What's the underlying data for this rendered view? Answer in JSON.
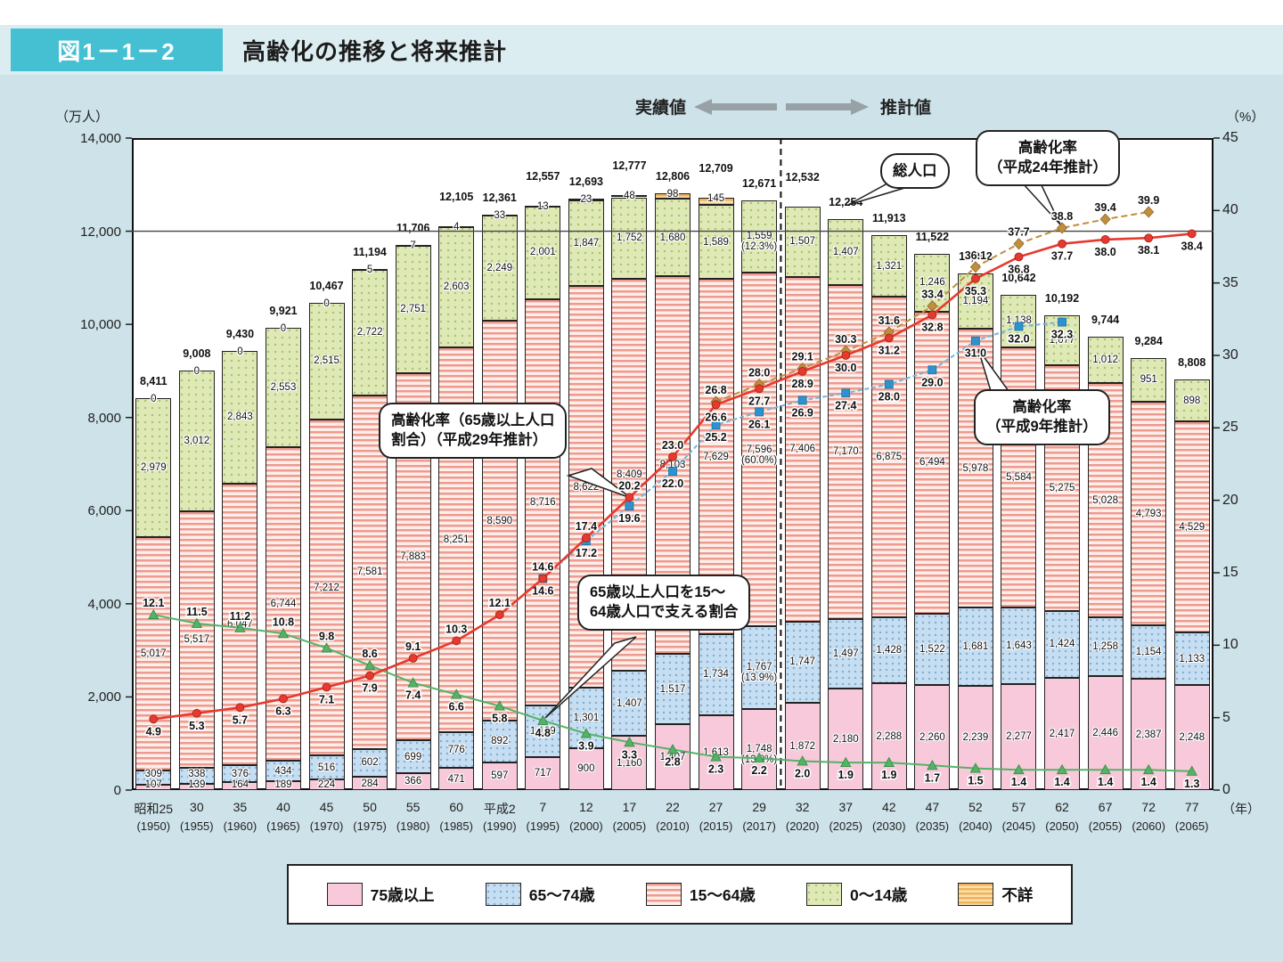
{
  "header": {
    "figure_label": "図1－1－2",
    "title": "高齢化の推移と将来推計"
  },
  "axes": {
    "left_unit": "（万人）",
    "right_unit": "（%）",
    "x_unit": "（年）",
    "left_ticks": [
      "14,000",
      "12,000",
      "10,000",
      "8,000",
      "6,000",
      "4,000",
      "2,000",
      "0"
    ],
    "right_ticks": [
      "45",
      "40",
      "35",
      "30",
      "25",
      "20",
      "15",
      "10",
      "5",
      "0"
    ]
  },
  "annotations": {
    "divider_label_actual": "実績値",
    "divider_label_estimate": "推計値",
    "callout_rate_h29": {
      "line1": "高齢化率（65歳以上人口",
      "line2": "割合）（平成29年推計）"
    },
    "callout_support": {
      "line1": "65歳以上人口を15～",
      "line2": "64歳人口で支える割合"
    },
    "callout_total": {
      "line1": "総人口"
    },
    "callout_rate_h24": {
      "line1": "高齢化率",
      "line2": "（平成24年推計）"
    },
    "callout_rate_h9": {
      "line1": "高齢化率",
      "line2": "（平成9年推計）"
    }
  },
  "legend": {
    "items": [
      {
        "label": "75歳以上",
        "key": "p75"
      },
      {
        "label": "65～74歳",
        "key": "p65_74"
      },
      {
        "label": "15～64歳",
        "key": "p15_64"
      },
      {
        "label": "0～14歳",
        "key": "p0_14"
      },
      {
        "label": "不詳",
        "key": "unknown"
      }
    ]
  },
  "colors": {
    "accent_teal": "#45c0d2",
    "bar_75plus": "#f7c9da",
    "bar_65_74": "#c6def2",
    "bar_15_64_stripe": "#ee9a8e",
    "bar_0_14": "#dfe9b6",
    "bar_unknown": "#eeb25c",
    "line_actual_h29": "#e63a2e",
    "line_h9": "#2d93cf",
    "line_h24": "#c18e3d",
    "line_support": "#55b266"
  },
  "chart_data": {
    "type": "bar",
    "title": "高齢化の推移と将来推計",
    "bar_unit": "万人",
    "percent_unit": "%",
    "ylim_left": [
      0,
      14000
    ],
    "ylim_right": [
      0,
      45
    ],
    "categories_era": [
      "昭和25",
      "30",
      "35",
      "40",
      "45",
      "50",
      "55",
      "60",
      "平成2",
      "7",
      "12",
      "17",
      "22",
      "27",
      "29",
      "32",
      "37",
      "42",
      "47",
      "52",
      "57",
      "62",
      "67",
      "72",
      "77"
    ],
    "categories_year": [
      "(1950)",
      "(1955)",
      "(1960)",
      "(1965)",
      "(1970)",
      "(1975)",
      "(1980)",
      "(1985)",
      "(1990)",
      "(1995)",
      "(2000)",
      "(2005)",
      "(2010)",
      "(2015)",
      "(2017)",
      "(2020)",
      "(2025)",
      "(2030)",
      "(2035)",
      "(2040)",
      "(2045)",
      "(2050)",
      "(2055)",
      "(2060)",
      "(2065)"
    ],
    "totals": [
      8411,
      9008,
      9430,
      9921,
      10467,
      11194,
      11706,
      12105,
      12361,
      12557,
      12693,
      12777,
      12806,
      12709,
      12671,
      12532,
      12254,
      11913,
      11522,
      11092,
      10642,
      10192,
      9744,
      9284,
      8808
    ],
    "series": [
      {
        "name": "75歳以上",
        "key": "p75",
        "values": [
          107,
          139,
          164,
          189,
          224,
          284,
          366,
          471,
          597,
          717,
          900,
          1160,
          1407,
          1613,
          1748,
          1872,
          2180,
          2288,
          2260,
          2239,
          2277,
          2417,
          2446,
          2387,
          2248
        ]
      },
      {
        "name": "65～74歳",
        "key": "p65_74",
        "values": [
          309,
          338,
          376,
          434,
          516,
          602,
          699,
          776,
          892,
          1109,
          1301,
          1407,
          1517,
          1734,
          1767,
          1747,
          1497,
          1428,
          1522,
          1681,
          1643,
          1424,
          1258,
          1154,
          1133
        ]
      },
      {
        "name": "15～64歳",
        "key": "p15_64",
        "values": [
          5017,
          5517,
          6047,
          6744,
          7212,
          7581,
          7883,
          8251,
          8590,
          8716,
          8622,
          8409,
          8103,
          7629,
          7596,
          7406,
          7170,
          6875,
          6494,
          5978,
          5584,
          5275,
          5028,
          4793,
          4529
        ]
      },
      {
        "name": "0～14歳",
        "key": "p0_14",
        "values": [
          2979,
          3012,
          2843,
          2553,
          2515,
          2722,
          2751,
          2603,
          2249,
          2001,
          1847,
          1752,
          1680,
          1589,
          1559,
          1507,
          1407,
          1321,
          1246,
          1194,
          1138,
          1077,
          1012,
          951,
          898
        ]
      },
      {
        "name": "不詳",
        "key": "unknown",
        "values": [
          0,
          0,
          0,
          0,
          0,
          5,
          7,
          4,
          33,
          13,
          23,
          48,
          98,
          145,
          null,
          null,
          null,
          null,
          null,
          null,
          null,
          null,
          null,
          null,
          null
        ]
      }
    ],
    "sub_labels_2017": {
      "p0_14": "(12.3%)",
      "p15_64": "(60.0%)",
      "p65_74": "(13.9%)",
      "p75": "(13.8%)"
    },
    "lines": [
      {
        "name": "高齢化率（実績値および平成29年推計）",
        "key": "actual_h29",
        "values": [
          4.9,
          5.3,
          5.7,
          6.3,
          7.1,
          7.9,
          9.1,
          10.3,
          12.1,
          14.6,
          17.4,
          20.2,
          23.0,
          26.6,
          27.7,
          28.9,
          30.0,
          31.2,
          32.8,
          35.3,
          36.8,
          37.7,
          38.0,
          38.1,
          38.4
        ]
      },
      {
        "name": "高齢化率（平成24年推計）",
        "key": "h24",
        "values": [
          null,
          null,
          null,
          null,
          null,
          null,
          null,
          null,
          null,
          null,
          null,
          null,
          null,
          26.8,
          28.0,
          29.1,
          30.3,
          31.6,
          33.4,
          36.1,
          37.7,
          38.8,
          39.4,
          39.9,
          null
        ]
      },
      {
        "name": "高齢化率（平成9年推計）",
        "key": "h9",
        "values": [
          null,
          null,
          null,
          null,
          null,
          null,
          null,
          null,
          null,
          14.6,
          17.2,
          19.6,
          22.0,
          25.2,
          26.1,
          26.9,
          27.4,
          28.0,
          29.0,
          31.0,
          32.0,
          32.3,
          null,
          null,
          null
        ]
      },
      {
        "name": "65歳以上人口を15～64歳人口で支える割合",
        "key": "support",
        "values": [
          12.1,
          11.5,
          11.2,
          10.8,
          9.8,
          8.6,
          7.4,
          6.6,
          5.8,
          4.8,
          3.9,
          3.3,
          2.8,
          2.3,
          2.2,
          2.0,
          1.9,
          1.9,
          1.7,
          1.5,
          1.4,
          1.4,
          1.4,
          1.4,
          1.3
        ]
      }
    ]
  }
}
